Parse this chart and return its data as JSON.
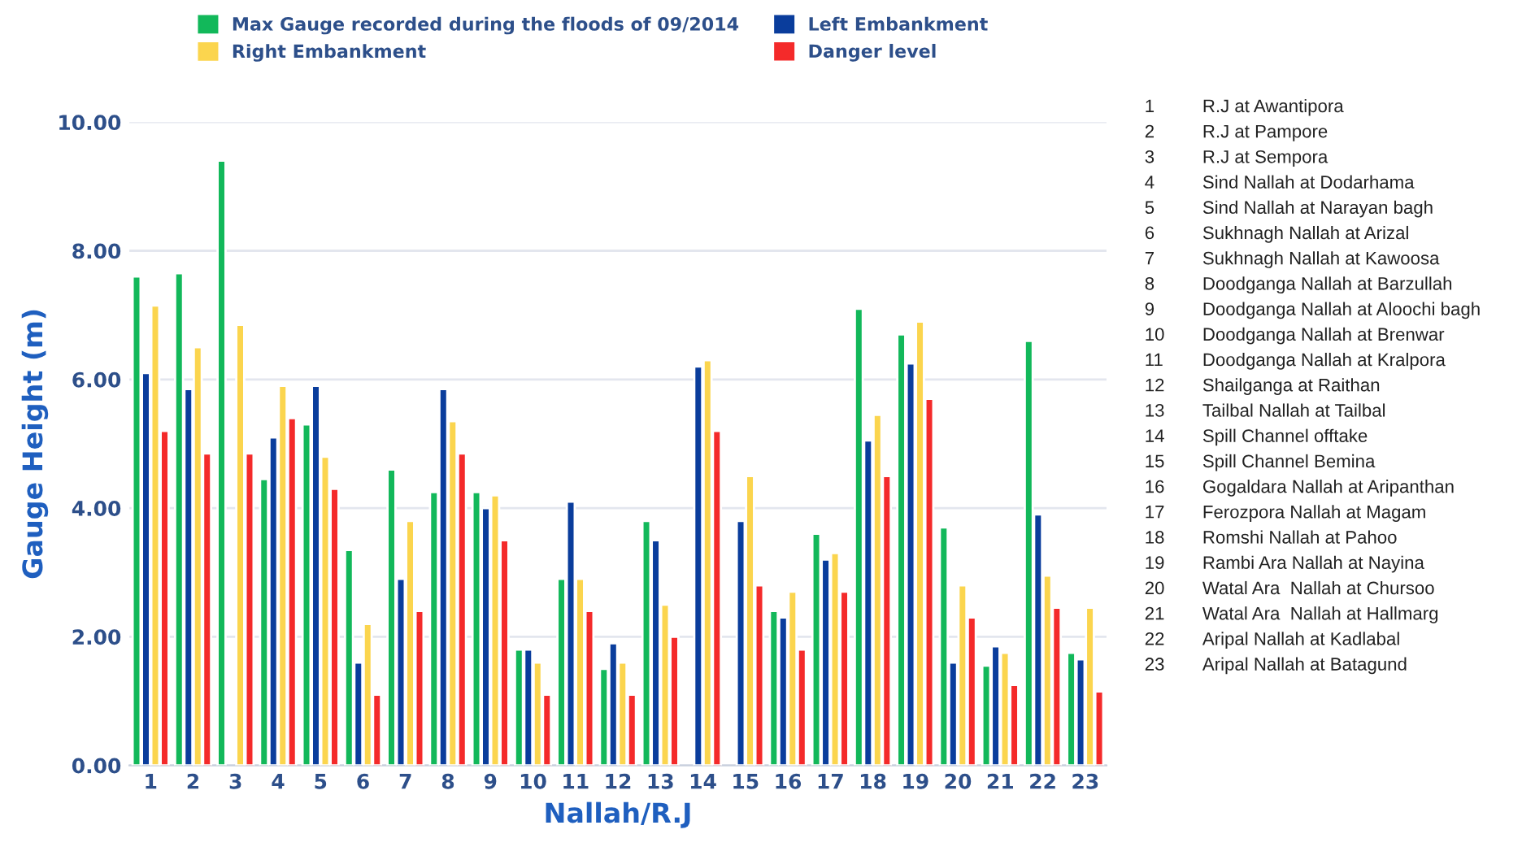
{
  "chart_data": {
    "type": "bar",
    "xlabel": "Nallah/R.J",
    "ylabel": "Gauge Height (m)",
    "categories": [
      "1",
      "2",
      "3",
      "4",
      "5",
      "6",
      "7",
      "8",
      "9",
      "10",
      "11",
      "12",
      "13",
      "14",
      "15",
      "16",
      "17",
      "18",
      "19",
      "20",
      "21",
      "22",
      "23"
    ],
    "series": [
      {
        "name": "Max Gauge recorded during the floods of 09/2014",
        "color": "#12b85a",
        "values": [
          7.6,
          7.65,
          9.4,
          4.45,
          5.3,
          3.35,
          4.6,
          4.25,
          4.25,
          1.8,
          2.9,
          1.5,
          3.8,
          null,
          null,
          2.4,
          3.6,
          7.1,
          6.7,
          3.7,
          1.55,
          6.6,
          1.75
        ]
      },
      {
        "name": "Left Embankment",
        "color": "#0a3d9c",
        "values": [
          6.1,
          5.85,
          null,
          5.1,
          5.9,
          1.6,
          2.9,
          5.85,
          4.0,
          1.8,
          4.1,
          1.9,
          3.5,
          6.2,
          3.8,
          2.3,
          3.2,
          5.05,
          6.25,
          1.6,
          1.85,
          3.9,
          1.65
        ]
      },
      {
        "name": "Right Embankment",
        "color": "#fbd54e",
        "values": [
          7.15,
          6.5,
          6.85,
          5.9,
          4.8,
          2.2,
          3.8,
          5.35,
          4.2,
          1.6,
          2.9,
          1.6,
          2.5,
          6.3,
          4.5,
          2.7,
          3.3,
          5.45,
          6.9,
          2.8,
          1.75,
          2.95,
          2.45
        ]
      },
      {
        "name": "Danger level",
        "color": "#f42a2a",
        "values": [
          5.2,
          4.85,
          4.85,
          5.4,
          4.3,
          1.1,
          2.4,
          4.85,
          3.5,
          1.1,
          2.4,
          1.1,
          2.0,
          5.2,
          2.8,
          1.8,
          2.7,
          4.5,
          5.7,
          2.3,
          1.25,
          2.45,
          1.15
        ]
      }
    ],
    "ylim": [
      0,
      10
    ],
    "yticks": [
      {
        "value": 0,
        "label": "0.00"
      },
      {
        "value": 2,
        "label": "2.00"
      },
      {
        "value": 4,
        "label": "4.00"
      },
      {
        "value": 6,
        "label": "6.00"
      },
      {
        "value": 8,
        "label": "8.00"
      },
      {
        "value": 10,
        "label": "10.00"
      }
    ],
    "grid": "y",
    "legend": "top",
    "annotations": [
      "1 R.J at Awantipora",
      "2 R.J at Pampore",
      "3 R.J at Sempora",
      "4 Sind Nallah at Dodarhama",
      "5 Sind Nallah at Narayan bagh",
      "6 Sukhnagh Nallah at Arizal",
      "7 Sukhnagh Nallah at Kawoosa",
      "8 Doodganga Nallah at Barzullah",
      "9 Doodganga Nallah at Aloochi bagh",
      "10 Doodganga Nallah at Brenwar",
      "11 Doodganga Nallah at Kralpora",
      "12 Shailganga at Raithan",
      "13 Tailbal Nallah at Tailbal",
      "14 Spill Channel offtake",
      "15 Spill Channel Bemina",
      "16 Gogaldara Nallah at Aripanthan",
      "17 Ferozpora Nallah at Magam",
      "18 Romshi Nallah at Pahoo",
      "19 Rambi Ara Nallah at Nayina",
      "20 Watal Ara  Nallah at Chursoo",
      "21 Watal Ara  Nallah at Hallmarg",
      "22 Aripal Nallah at Kadlabal",
      "23 Aripal Nallah at Batagund"
    ]
  }
}
